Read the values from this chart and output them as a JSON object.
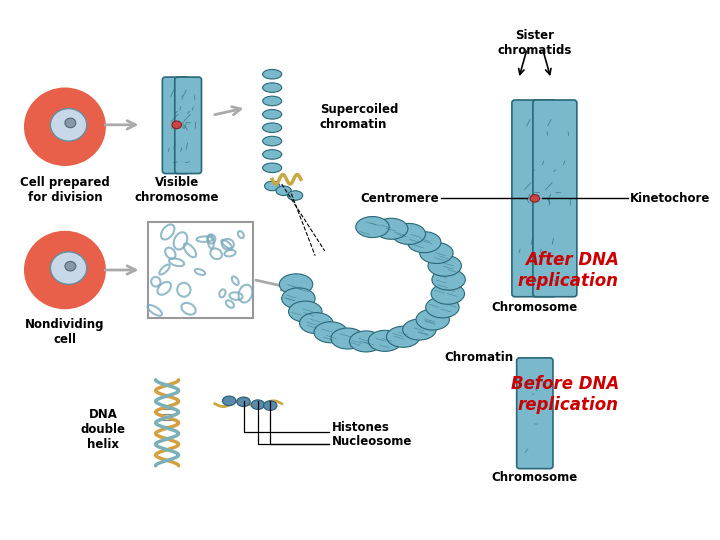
{
  "background_color": "#ffffff",
  "labels": {
    "sister_chromatids": "Sister\nchromatids",
    "supercoiled_chromatin": "Supercoiled\nchromatin",
    "centromere": "Centromere",
    "kinetochore": "Kinetochore",
    "after_dna": "After DNA\nreplication",
    "chromosome_top": "Chromosome",
    "cell_prepared": "Cell prepared\nfor division",
    "visible_chromosome": "Visible\nchromosome",
    "nondividing_cell": "Nondividing\ncell",
    "chromatin": "Chromatin",
    "dna_double_helix": "DNA\ndouble\nhelix",
    "histones": "Histones",
    "nucleosome": "Nucleosome",
    "before_dna": "Before DNA\nreplication",
    "chromosome_bottom": "Chromosome"
  },
  "after_dna_color": "#cc0000",
  "before_dna_color": "#cc0000",
  "label_color": "#000000",
  "font_size_labels": 8.5,
  "font_size_section": 12,
  "cell_color": "#e8604a",
  "cell_edge": "#c04030",
  "nucleus_color": "#c8d8e8",
  "nucleus_edge": "#6090a0",
  "chrom_color": "#7ab8cc",
  "chrom_edge": "#2a6878",
  "chrom_color2": "#8aaabb",
  "gold_color": "#c8a840",
  "centromere_color": "#cc4444",
  "arrow_color": "#aaaaaa",
  "mesh_color": "#7aaabb",
  "line_color": "#000000"
}
